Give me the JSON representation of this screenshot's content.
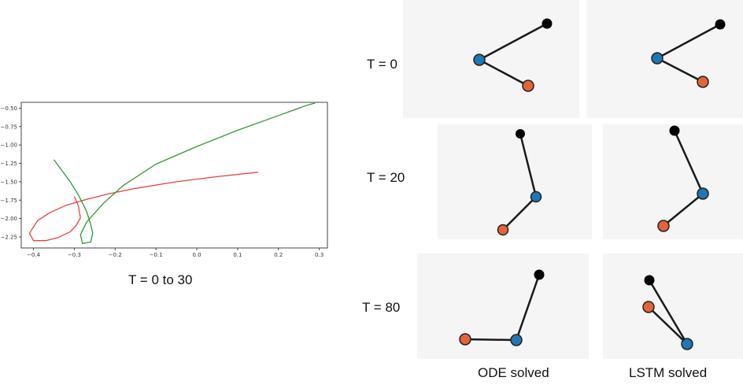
{
  "chart_data": [
    {
      "type": "line",
      "xlim": [
        -0.43,
        0.32
      ],
      "ylim": [
        -2.4,
        -0.42
      ],
      "xticks": [
        "−0.4",
        "−0.3",
        "−0.2",
        "−0.1",
        "0.0",
        "0.1",
        "0.2",
        "0.3"
      ],
      "yticks": [
        "−0.50",
        "−0.75",
        "−1.00",
        "−1.25",
        "−1.50",
        "−1.75",
        "−2.00",
        "−2.25"
      ],
      "grid": false,
      "series": [
        {
          "color": "#e8433e",
          "x": [
            0.15,
            0.05,
            -0.05,
            -0.15,
            -0.22,
            -0.27,
            -0.32,
            -0.36,
            -0.39,
            -0.41,
            -0.4,
            -0.37,
            -0.34,
            -0.31,
            -0.295,
            -0.285,
            -0.29,
            -0.3
          ],
          "y": [
            -1.37,
            -1.43,
            -1.5,
            -1.59,
            -1.67,
            -1.74,
            -1.82,
            -1.92,
            -2.03,
            -2.2,
            -2.3,
            -2.3,
            -2.26,
            -2.18,
            -2.09,
            -1.99,
            -1.83,
            -1.7
          ]
        },
        {
          "color": "#2f9a37",
          "x": [
            0.29,
            0.27,
            0.2,
            0.1,
            0.0,
            -0.1,
            -0.18,
            -0.23,
            -0.27,
            -0.285,
            -0.28,
            -0.26,
            -0.255,
            -0.26,
            -0.27,
            -0.29,
            -0.31,
            -0.35
          ],
          "y": [
            -0.43,
            -0.46,
            -0.6,
            -0.8,
            -1.02,
            -1.26,
            -1.55,
            -1.8,
            -2.05,
            -2.22,
            -2.34,
            -2.32,
            -2.2,
            -2.08,
            -1.9,
            -1.68,
            -1.5,
            -1.2
          ]
        }
      ]
    }
  ],
  "caption": "T = 0 to 30",
  "rows": [
    "T = 0",
    "T = 20",
    "T = 80"
  ],
  "columns": [
    "ODE solved",
    "LSTM solved"
  ],
  "colors": {
    "pivot": "#000000",
    "mass1": "#1f77b4",
    "mass2": "#e3643a",
    "rod": "#1a1a1a",
    "panel_bg": "#f5f5f5"
  }
}
